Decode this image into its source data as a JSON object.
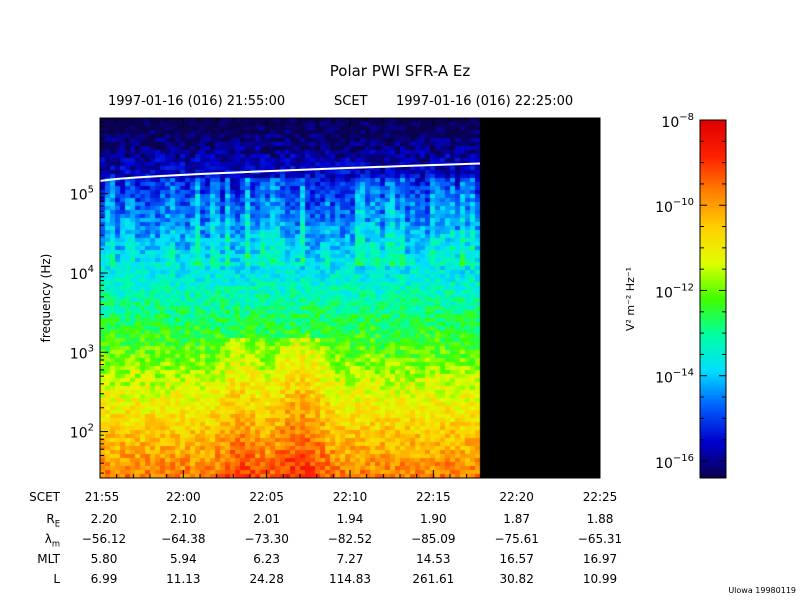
{
  "chart_data": {
    "type": "heatmap",
    "title": "Polar PWI SFR-A Ez",
    "time_range": {
      "start": "1997-01-16 (016) 21:55:00",
      "label": "SCET",
      "end": "1997-01-16 (016) 22:25:00"
    },
    "ylabel": "frequency (Hz)",
    "yscale": "log",
    "ylim": [
      26,
      900000
    ],
    "y_ticks": [
      {
        "base": "10",
        "exp": "2",
        "value": 100
      },
      {
        "base": "10",
        "exp": "3",
        "value": 1000
      },
      {
        "base": "10",
        "exp": "4",
        "value": 10000
      },
      {
        "base": "10",
        "exp": "5",
        "value": 100000
      }
    ],
    "x_range_minutes": [
      0,
      30
    ],
    "data_gap_from_minute": 22.8,
    "electron_cyclotron_line": {
      "start_hz": 145000,
      "end_hz": 240000,
      "end_minute": 22.8
    },
    "colorbar": {
      "label": "V² m⁻² Hz⁻¹",
      "scale": "log",
      "range": [
        -16.4,
        -8
      ],
      "ticks": [
        {
          "base": "10",
          "exp": "−8",
          "value": -8
        },
        {
          "base": "10",
          "exp": "−10",
          "value": -10
        },
        {
          "base": "10",
          "exp": "−12",
          "value": -12
        },
        {
          "base": "10",
          "exp": "−14",
          "value": -14
        },
        {
          "base": "10",
          "exp": "−16",
          "value": -16
        }
      ],
      "colors": [
        "#0a0050",
        "#0000d0",
        "#0060ff",
        "#00e0ff",
        "#00ffa0",
        "#40ff00",
        "#e0ff00",
        "#ffd000",
        "#ff8000",
        "#ff2000",
        "#e00000"
      ]
    },
    "ephemeris": {
      "times": [
        "21:55",
        "22:00",
        "22:05",
        "22:10",
        "22:15",
        "22:20",
        "22:25"
      ],
      "rows": [
        {
          "label": "SCET",
          "values": [
            "21:55",
            "22:00",
            "22:05",
            "22:10",
            "22:15",
            "22:20",
            "22:25"
          ]
        },
        {
          "label": "R",
          "sub": "E",
          "values": [
            "2.20",
            "2.10",
            "2.01",
            "1.94",
            "1.90",
            "1.87",
            "1.88"
          ]
        },
        {
          "label": "λ",
          "sub": "m",
          "values": [
            "−56.12",
            "−64.38",
            "−73.30",
            "−82.52",
            "−85.09",
            "−75.61",
            "−65.31"
          ]
        },
        {
          "label": "MLT",
          "values": [
            "5.80",
            "5.94",
            "6.23",
            "7.27",
            "14.53",
            "16.57",
            "16.97"
          ]
        },
        {
          "label": "L",
          "values": [
            "6.99",
            "11.13",
            "24.28",
            "114.83",
            "261.61",
            "30.82",
            "10.99"
          ]
        }
      ]
    }
  },
  "footer": {
    "credit": "Ulowa 19980119"
  }
}
